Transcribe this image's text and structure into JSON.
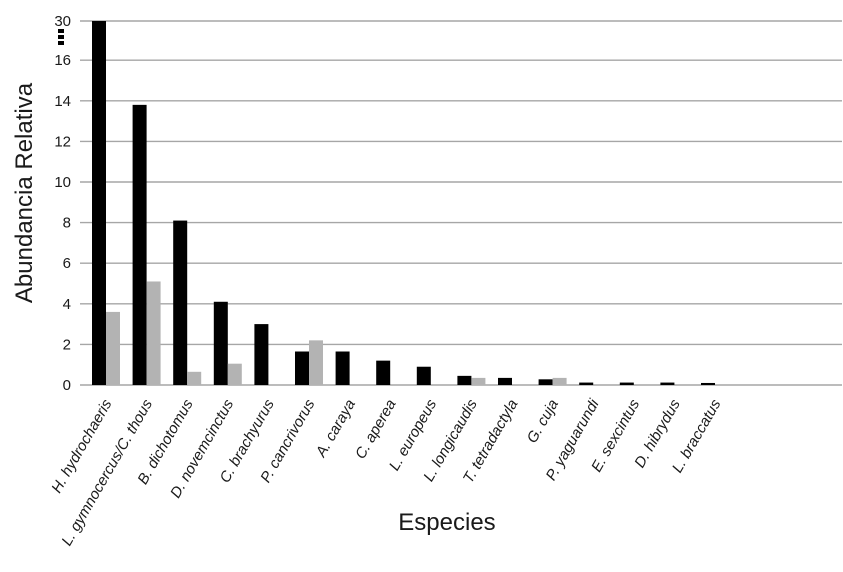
{
  "chart_data": {
    "type": "bar",
    "xlabel": "Especies",
    "ylabel": "Abundancia Relativa",
    "y_ticks": [
      "0",
      "2",
      "4",
      "6",
      "8",
      "10",
      "12",
      "14",
      "16",
      "30"
    ],
    "y_axis_break": "between 16 and 30",
    "ylim": [
      0,
      30
    ],
    "grid": true,
    "categories": [
      "H. hydrochaeris",
      "L. gymnocercus/C. thous",
      "B. dichotomus",
      "D. novemcinctus",
      "C. brachyurus",
      "P. cancrivorus",
      "A. caraya",
      "C. aperea",
      "L. europeus",
      "L. longicaudis",
      "T. tetradactyla",
      "G. cuja",
      "P. yaguarundi",
      "E. sexcintus",
      "D. hibrydus",
      "L. braccatus"
    ],
    "series": [
      {
        "color": "#000000",
        "values": [
          30,
          13.8,
          8.1,
          4.1,
          3.0,
          1.65,
          1.65,
          1.2,
          0.9,
          0.45,
          0.35,
          0.28,
          0.12,
          0.12,
          0.12,
          0.1
        ]
      },
      {
        "color": "#b3b3b3",
        "values": [
          3.6,
          5.1,
          0.65,
          1.05,
          0,
          2.2,
          0,
          0,
          0,
          0.35,
          0,
          0.35,
          0,
          0,
          0,
          0
        ]
      }
    ]
  }
}
